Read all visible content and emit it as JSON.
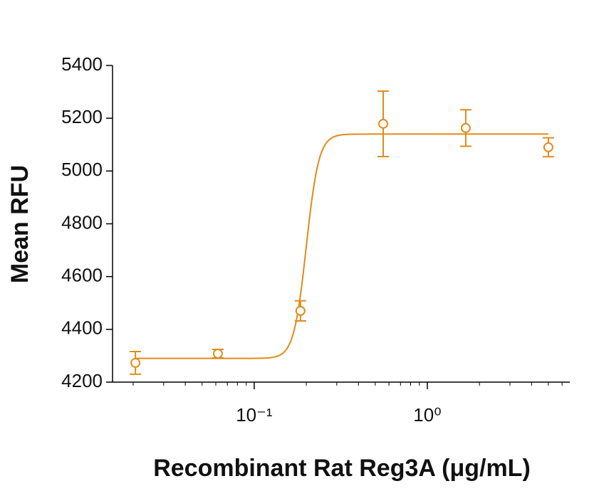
{
  "chart_data": {
    "type": "scatter",
    "x_label": "Recombinant Rat Reg3A (μg/mL)",
    "y_label": "Mean RFU",
    "x": [
      0.0206,
      0.0617,
      0.185,
      0.556,
      1.667,
      5
    ],
    "series": [
      {
        "color": "#e08b1a",
        "values": [
          4273,
          4308,
          4470,
          5179,
          5163,
          5090
        ],
        "errors": [
          43,
          16,
          38,
          124,
          69,
          36
        ]
      }
    ],
    "fit": {
      "bottom": 4290,
      "top": 5140,
      "ec50": 0.2,
      "hill": 12
    },
    "xscale": "log",
    "xlim": [
      0.0152,
      6.65
    ],
    "xticks": [
      {
        "value": 0.1,
        "label": "10⁻¹"
      },
      {
        "value": 1,
        "label": "10⁰"
      }
    ],
    "xminorticks": [
      0.02,
      0.03,
      0.04,
      0.05,
      0.06,
      0.07,
      0.08,
      0.09,
      0.2,
      0.3,
      0.4,
      0.5,
      0.6,
      0.7,
      0.8,
      0.9,
      2,
      3,
      4,
      5,
      6
    ],
    "ylim": [
      4200,
      5400
    ],
    "yticks": [
      4200,
      4400,
      4600,
      4800,
      5000,
      5200,
      5400
    ]
  }
}
